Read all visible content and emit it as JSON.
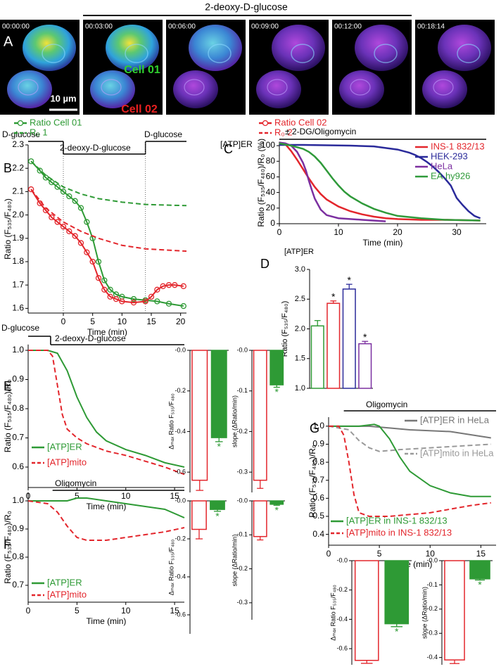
{
  "image_panel": {
    "label": "A",
    "treatment": "2-deoxy-D-glucose",
    "timestamps": [
      "00:00:00",
      "00:03:00",
      "00:06:00",
      "00:09:00",
      "00:12:00",
      "00:18:14"
    ],
    "cell_labels": [
      "Cell 01",
      "Cell 02"
    ],
    "scale_bar": "10 µm"
  },
  "chart_data": [
    {
      "type": "line",
      "panel": "B",
      "x_label": "Time (min)",
      "y_label": "Ratio (F₅₃₅/F₄₈₀)",
      "xlim": [
        -6,
        21
      ],
      "ylim": [
        1.58,
        2.3
      ],
      "xticks": [
        0,
        5,
        10,
        15,
        20
      ],
      "yticks": [
        1.6,
        1.7,
        1.8,
        1.9,
        {
          "value": 2,
          "label": "2.0"
        },
        2.1,
        2.2,
        2.3
      ],
      "stimuli": [
        {
          "label": "D-glucose",
          "start": -6,
          "end": 0
        },
        {
          "label": "2-deoxy-D-glucose",
          "start": 0,
          "end": 14
        },
        {
          "label": "D-glucose",
          "start": 14,
          "end": 21
        }
      ],
      "stimulus_guides": true,
      "series": [
        {
          "name": "Ratio Cell 01",
          "color": "#2e9a35",
          "marker": "open-circle",
          "line_style": "solid",
          "x": [
            -5.5,
            -4,
            -3,
            -2,
            -1,
            0,
            1,
            2,
            3,
            4,
            5,
            6,
            7,
            8,
            9,
            10,
            12,
            14,
            16,
            18,
            20.5
          ],
          "values": [
            2.23,
            2.19,
            2.16,
            2.14,
            2.12,
            2.1,
            2.08,
            2.06,
            2.03,
            1.97,
            1.9,
            1.8,
            1.72,
            1.68,
            1.66,
            1.65,
            1.64,
            1.635,
            1.63,
            1.62,
            1.61
          ]
        },
        {
          "name": "Ratio Cell 02",
          "color": "#e3262c",
          "marker": "open-circle",
          "line_style": "solid",
          "x": [
            -5.5,
            -4,
            -3,
            -2,
            -1,
            0,
            1,
            2,
            3,
            4,
            5,
            6,
            7,
            8,
            9,
            10,
            12,
            14,
            15,
            16,
            17,
            18,
            19,
            20.5
          ],
          "values": [
            2.11,
            2.05,
            2.02,
            1.99,
            1.97,
            1.95,
            1.93,
            1.91,
            1.88,
            1.84,
            1.8,
            1.73,
            1.68,
            1.65,
            1.64,
            1.63,
            1.625,
            1.63,
            1.65,
            1.68,
            1.695,
            1.7,
            1.7,
            1.695
          ]
        },
        {
          "name": "R₀ 1",
          "color": "#2e9a35",
          "line_style": "dashed",
          "x": [
            -5.5,
            -3,
            0,
            3,
            6,
            10,
            14,
            21
          ],
          "values": [
            2.23,
            2.17,
            2.12,
            2.09,
            2.07,
            2.055,
            2.045,
            2.04
          ]
        },
        {
          "name": "R₀ 2",
          "color": "#e3262c",
          "line_style": "dashed",
          "x": [
            -5.5,
            -3,
            0,
            3,
            6,
            10,
            14,
            21
          ],
          "values": [
            2.11,
            2.03,
            1.97,
            1.93,
            1.9,
            1.87,
            1.855,
            1.845
          ]
        }
      ]
    },
    {
      "type": "line",
      "panel": "C",
      "title": "[ATP]ER",
      "x_label": "Time (min)",
      "y_label": "Ratio (F₅₃₅/F₄₈₀)/R₀ (%)",
      "xlim": [
        0,
        35
      ],
      "ylim": [
        0,
        105
      ],
      "xticks": [
        0,
        10,
        20,
        30
      ],
      "yticks": [
        0,
        20,
        40,
        60,
        80,
        100
      ],
      "stimuli": [
        {
          "label": "± 2-DG/Oligomycin",
          "start": 0,
          "end": 35
        }
      ],
      "series": [
        {
          "name": "INS-1 832/13",
          "color": "#e3262c",
          "line_style": "solid",
          "x": [
            0,
            1,
            2,
            3,
            4,
            5,
            6,
            7,
            8,
            10,
            12,
            14,
            16,
            18,
            20,
            24,
            28,
            34
          ],
          "values": [
            104,
            102,
            93,
            82,
            70,
            58,
            47,
            38,
            31,
            22,
            16,
            12,
            9,
            7,
            6,
            5,
            5,
            4
          ]
        },
        {
          "name": "HEK-293",
          "color": "#2a2a9a",
          "line_style": "solid",
          "x": [
            0,
            4,
            8,
            12,
            16,
            18,
            20,
            22,
            23,
            24,
            25,
            26,
            27,
            28,
            29,
            30,
            31,
            32,
            33,
            34
          ],
          "values": [
            101,
            101,
            100.5,
            100,
            99,
            97,
            95,
            91,
            88,
            84,
            79,
            73,
            66,
            58,
            49,
            33,
            24,
            16,
            10,
            7
          ]
        },
        {
          "name": "HeLa",
          "color": "#7b2fa0",
          "line_style": "solid",
          "x": [
            0,
            1,
            2,
            3,
            4,
            4.5,
            5,
            5.5,
            6,
            7,
            8,
            10,
            14,
            18
          ],
          "values": [
            104,
            103,
            100,
            92,
            78,
            68,
            55,
            43,
            32,
            18,
            11,
            7,
            5,
            3
          ]
        },
        {
          "name": "EA.hy926",
          "color": "#2f9a3a",
          "line_style": "solid",
          "x": [
            0,
            2,
            4,
            5,
            6,
            7,
            8,
            9,
            10,
            11,
            12,
            14,
            16,
            18,
            20,
            24,
            28,
            34
          ],
          "values": [
            103,
            100,
            96,
            92,
            86,
            78,
            68,
            58,
            49,
            41,
            35,
            26,
            19,
            14,
            10,
            7,
            5,
            4
          ]
        }
      ]
    },
    {
      "type": "bar",
      "panel": "D",
      "title": "[ATP]ER",
      "y_label": "Ratio (F₅₃₅/F₄₈₀)",
      "ylim": [
        1,
        3
      ],
      "yticks": [
        {
          "value": 1,
          "label": "1.0"
        },
        1.5,
        {
          "value": 2,
          "label": "2.0"
        },
        2.5,
        {
          "value": 3,
          "label": "3.0"
        }
      ],
      "categories": [
        null,
        null,
        null,
        null
      ],
      "values": [
        2.05,
        2.43,
        2.67,
        1.75
      ],
      "errors": [
        0.09,
        0.04,
        0.08,
        0.04
      ],
      "colors": [
        "#2e9a35",
        "#e3262c",
        "#2a2a9a",
        "#7b2fa0"
      ],
      "filled": [
        false,
        false,
        false,
        false
      ],
      "significance": [
        null,
        "*",
        "*",
        "*"
      ]
    },
    {
      "type": "line",
      "panel": "E",
      "x_label": "Time (min)",
      "y_label": "Ratio (F₅₃₅/F₄₈₀)/R₀",
      "xlim": [
        0,
        16
      ],
      "ylim": [
        0.53,
        1.02
      ],
      "xticks": [
        0,
        5,
        10,
        15
      ],
      "yticks": [
        0.6,
        0.7,
        0.8,
        0.9,
        {
          "value": 1,
          "label": "1.0"
        }
      ],
      "stimuli": [
        {
          "label": "D-glucose",
          "start": 0,
          "end": 2.3
        },
        {
          "label": "2-deoxy-D-glucose",
          "start": 2.3,
          "end": 16
        }
      ],
      "series": [
        {
          "name": "[ATP]ER",
          "color": "#2e9a35",
          "line_style": "solid",
          "x": [
            0,
            2,
            3,
            4,
            5,
            6,
            7,
            8,
            10,
            12,
            14,
            16
          ],
          "values": [
            1,
            1,
            0.99,
            0.93,
            0.84,
            0.77,
            0.72,
            0.69,
            0.66,
            0.64,
            0.615,
            0.6
          ]
        },
        {
          "name": "[ATP]mito",
          "color": "#e3262c",
          "line_style": "dashed",
          "x": [
            0,
            2,
            2.5,
            3,
            3.5,
            4,
            5,
            6,
            8,
            10,
            12,
            14,
            16
          ],
          "values": [
            1,
            1,
            0.98,
            0.88,
            0.78,
            0.73,
            0.7,
            0.68,
            0.655,
            0.64,
            0.62,
            0.6,
            0.575
          ]
        }
      ]
    },
    {
      "type": "bar",
      "y_label": "Δₘₐₓ Ratio F₅₃₅/F₄₈₀",
      "ylim": [
        -0.7,
        0
      ],
      "yticks": [
        {
          "value": 0,
          "label": "-0.0"
        },
        -0.2,
        -0.4,
        -0.6
      ],
      "categories": [
        null,
        null
      ],
      "values": [
        -0.64,
        -0.43
      ],
      "errors": [
        0.05,
        0.02
      ],
      "colors": [
        "#e3262c",
        "#2e9a35"
      ],
      "filled": [
        false,
        true
      ],
      "significance": [
        null,
        "*"
      ]
    },
    {
      "type": "bar",
      "y_label": "slope (ΔRatio/min)",
      "ylim": [
        -0.35,
        0
      ],
      "yticks": [
        {
          "value": 0,
          "label": "-0.0"
        },
        -0.1,
        -0.2,
        -0.3
      ],
      "categories": [
        null,
        null
      ],
      "values": [
        -0.32,
        -0.085
      ],
      "errors": [
        0.02,
        0.006
      ],
      "colors": [
        "#e3262c",
        "#2e9a35"
      ],
      "filled": [
        false,
        true
      ],
      "significance": [
        null,
        "*"
      ]
    },
    {
      "type": "line",
      "panel": "F",
      "x_label": "Time (min)",
      "y_label": "Ratio (F₅₃₅/F₄₈₀)/R₀",
      "xlim": [
        0,
        16
      ],
      "ylim": [
        0.64,
        1.03
      ],
      "xticks": [
        0,
        5,
        10,
        15
      ],
      "yticks": [
        0.7,
        0.8,
        0.9,
        {
          "value": 1,
          "label": "1.0"
        }
      ],
      "stimuli": [
        {
          "label": "Oligomycin",
          "start": 2.5,
          "end": 16
        }
      ],
      "series": [
        {
          "name": "[ATP]ER",
          "color": "#2e9a35",
          "line_style": "solid",
          "x": [
            0,
            2,
            4,
            5,
            6,
            8,
            10,
            12,
            14,
            16
          ],
          "values": [
            1,
            1,
            1,
            1.01,
            1.01,
            1,
            0.99,
            0.98,
            0.97,
            0.94
          ]
        },
        {
          "name": "[ATP]mito",
          "color": "#e3262c",
          "line_style": "dashed",
          "x": [
            0,
            2,
            3,
            4,
            5,
            6,
            8,
            10,
            12,
            14,
            16
          ],
          "values": [
            1,
            0.99,
            0.96,
            0.91,
            0.87,
            0.86,
            0.86,
            0.87,
            0.88,
            0.89,
            0.905
          ]
        }
      ]
    },
    {
      "type": "bar",
      "y_label": "Δₘₐₓ Ratio F₅₃₅/F₄₈₀",
      "ylim": [
        -0.7,
        0
      ],
      "yticks": [
        {
          "value": 0,
          "label": "-0.0"
        },
        -0.2,
        -0.4,
        -0.6
      ],
      "categories": [
        null,
        null
      ],
      "values": [
        -0.15,
        -0.045
      ],
      "errors": [
        0.05,
        0.01
      ],
      "colors": [
        "#e3262c",
        "#2e9a35"
      ],
      "filled": [
        false,
        true
      ],
      "significance": [
        null,
        "*"
      ]
    },
    {
      "type": "bar",
      "y_label": "slope (ΔRatio/min)",
      "ylim": [
        -0.35,
        0
      ],
      "yticks": [
        {
          "value": 0,
          "label": "-0.0"
        },
        -0.1,
        -0.2,
        -0.3
      ],
      "categories": [
        null,
        null
      ],
      "values": [
        -0.105,
        -0.01
      ],
      "errors": [
        0.01,
        0.003
      ],
      "colors": [
        "#e3262c",
        "#2e9a35"
      ],
      "filled": [
        false,
        true
      ],
      "significance": [
        null,
        "*"
      ]
    },
    {
      "type": "line",
      "panel": "G",
      "x_label": "Time (min)",
      "y_label": "Ratio (F₅₃₅/F₄₈₀)/R₀",
      "xlim": [
        0,
        16.5
      ],
      "ylim": [
        0.34,
        1.05
      ],
      "xticks": [
        0,
        5,
        10,
        15
      ],
      "yticks": [
        0.4,
        0.5,
        0.6,
        0.7,
        0.8,
        0.9,
        {
          "value": 1,
          "label": "1.0"
        }
      ],
      "stimuli": [
        {
          "label": "Oligomycin",
          "start": 1.5,
          "end": 16.5
        }
      ],
      "series": [
        {
          "name": "[ATP]ER in HeLa",
          "color": "#777777",
          "line_style": "solid",
          "x": [
            0,
            4,
            6,
            8,
            12,
            16
          ],
          "values": [
            1,
            1,
            0.99,
            0.98,
            0.97,
            0.935
          ]
        },
        {
          "name": "[ATP]mito in HeLa",
          "color": "#999999",
          "line_style": "dashed",
          "x": [
            0,
            2,
            3,
            4,
            5,
            7,
            10,
            13,
            16
          ],
          "values": [
            1,
            0.98,
            0.92,
            0.88,
            0.86,
            0.87,
            0.88,
            0.89,
            0.9
          ]
        },
        {
          "name": "[ATP]ER in INS-1 832/13",
          "color": "#2e9a35",
          "line_style": "solid",
          "x": [
            0,
            3,
            4.5,
            5,
            6,
            7,
            8,
            10,
            12,
            14,
            16
          ],
          "values": [
            1,
            1,
            1.01,
            1,
            0.93,
            0.83,
            0.75,
            0.67,
            0.63,
            0.61,
            0.61
          ]
        },
        {
          "name": "[ATP]mito in INS-1 832/13",
          "color": "#e3262c",
          "line_style": "dashed",
          "x": [
            0,
            1,
            1.5,
            2,
            2.5,
            3,
            4,
            6,
            8,
            10,
            12,
            14,
            16
          ],
          "values": [
            1,
            1,
            0.95,
            0.8,
            0.62,
            0.52,
            0.5,
            0.5,
            0.51,
            0.52,
            0.54,
            0.56,
            0.575
          ]
        }
      ]
    },
    {
      "type": "bar",
      "y_label": "Δₘₐₓ Ratio F₅₃₅/F₄₈₀",
      "ylim": [
        -0.71,
        0
      ],
      "yticks": [
        {
          "value": 0,
          "label": "-0.0"
        },
        -0.2,
        -0.4,
        -0.6
      ],
      "categories": [
        null,
        null
      ],
      "values": [
        -0.68,
        -0.43
      ],
      "errors": [
        0.02,
        0.02
      ],
      "colors": [
        "#e3262c",
        "#2e9a35"
      ],
      "filled": [
        false,
        true
      ],
      "significance": [
        null,
        "*"
      ]
    },
    {
      "type": "bar",
      "y_label": "slope (ΔRatio/min)",
      "ylim": [
        -0.43,
        0
      ],
      "yticks": [
        {
          "value": 0,
          "label": "-0.0"
        },
        -0.1,
        -0.2,
        -0.3,
        -0.4
      ],
      "categories": [
        null,
        null
      ],
      "values": [
        -0.41,
        -0.075
      ],
      "errors": [
        0.015,
        0.005
      ],
      "colors": [
        "#e3262c",
        "#2e9a35"
      ],
      "filled": [
        false,
        true
      ],
      "significance": [
        null,
        "*"
      ]
    }
  ]
}
